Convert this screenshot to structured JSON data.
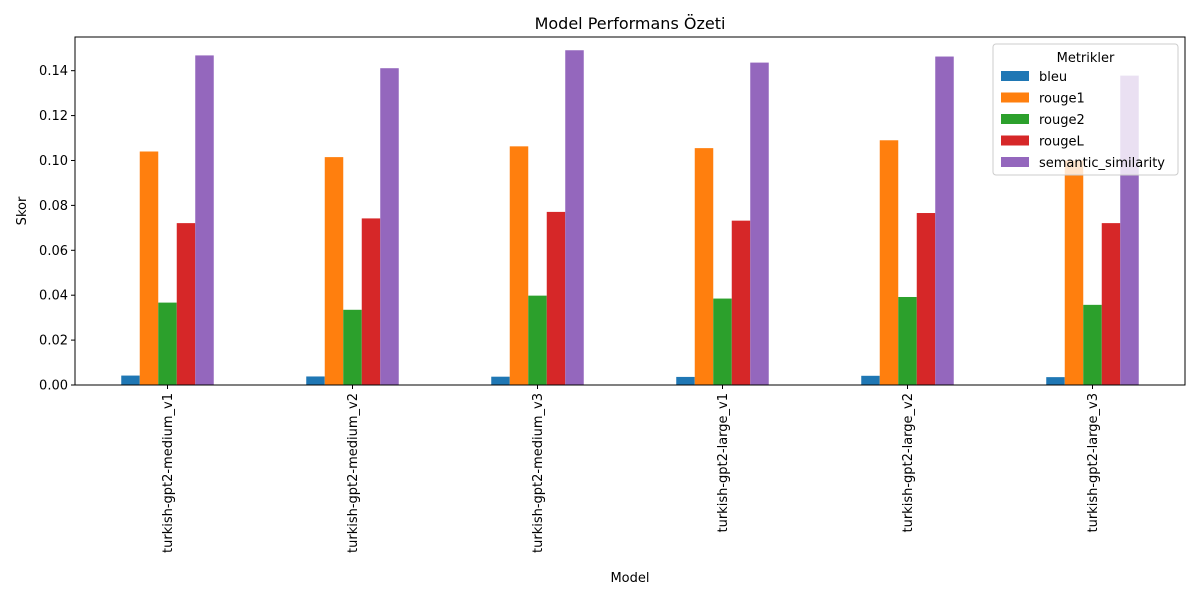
{
  "chart_data": {
    "type": "bar",
    "title": "Model Performans Özeti",
    "xlabel": "Model",
    "ylabel": "Skor",
    "ylim": [
      0,
      0.155
    ],
    "yticks": [
      "0.00",
      "0.02",
      "0.04",
      "0.06",
      "0.08",
      "0.10",
      "0.12",
      "0.14"
    ],
    "categories": [
      "turkish-gpt2-medium_v1",
      "turkish-gpt2-medium_v2",
      "turkish-gpt2-medium_v3",
      "turkish-gpt2-large_v1",
      "turkish-gpt2-large_v2",
      "turkish-gpt2-large_v3"
    ],
    "series": [
      {
        "name": "bleu",
        "color": "#1f77b4",
        "values": [
          0.0042,
          0.0038,
          0.0037,
          0.0036,
          0.0041,
          0.0035
        ]
      },
      {
        "name": "rouge1",
        "color": "#ff7f0e",
        "values": [
          0.104,
          0.1015,
          0.1063,
          0.1055,
          0.109,
          0.1
        ]
      },
      {
        "name": "rouge2",
        "color": "#2ca02c",
        "values": [
          0.0367,
          0.0335,
          0.0398,
          0.0385,
          0.0392,
          0.0357
        ]
      },
      {
        "name": "rougeL",
        "color": "#d62728",
        "values": [
          0.0721,
          0.0742,
          0.0771,
          0.0732,
          0.0766,
          0.0721
        ]
      },
      {
        "name": "semantic_similarity",
        "color": "#9467bd",
        "values": [
          0.1468,
          0.1411,
          0.1491,
          0.1436,
          0.1463,
          0.1378
        ]
      }
    ],
    "legend": {
      "title": "Metrikler",
      "placement": "top-right"
    },
    "grid": false
  }
}
